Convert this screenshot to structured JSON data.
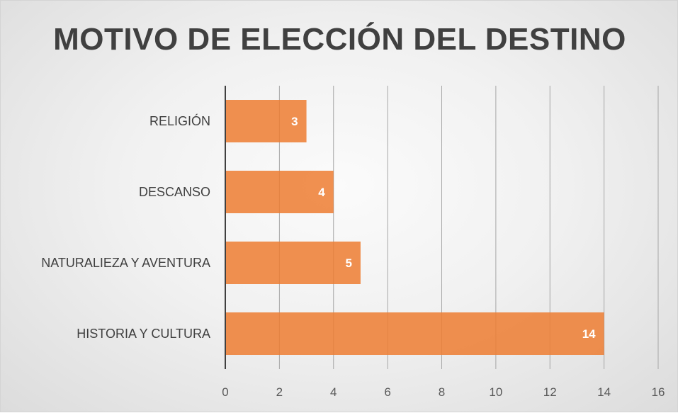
{
  "chart_data": {
    "type": "bar",
    "orientation": "horizontal",
    "title": "MOTIVO DE ELECCIÓN DEL DESTINO",
    "categories": [
      "HISTORIA Y CULTURA",
      "NATURALIEZA Y AVENTURA",
      "DESCANSO",
      "RELIGIÓN"
    ],
    "values": [
      14,
      5,
      4,
      3
    ],
    "xlim": [
      0,
      16
    ],
    "xticks": [
      0,
      2,
      4,
      6,
      8,
      10,
      12,
      14,
      16
    ],
    "xlabel": "",
    "ylabel": "",
    "grid": "vertical",
    "legend": "none",
    "data_labels": true,
    "colors": {
      "bar": "#ED7D31",
      "bar_opacity": 0.85,
      "grid": "#a6a6a6",
      "axis": "#404040",
      "category_text": "#404040",
      "tick_text": "#595959",
      "data_label_text": "#ffffff"
    }
  }
}
